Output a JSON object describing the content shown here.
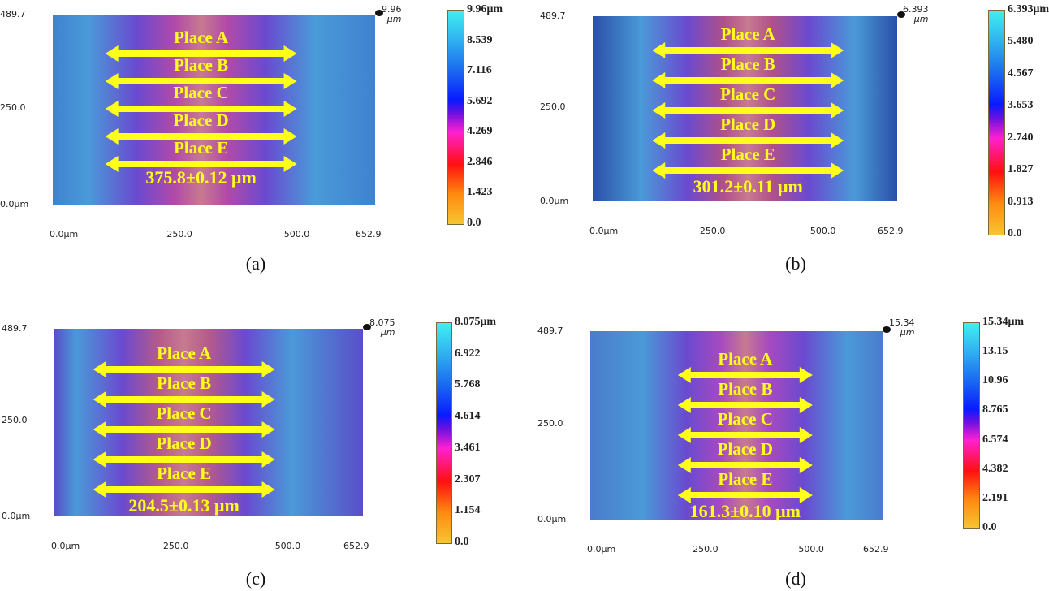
{
  "chart_data": [
    {
      "type": "heatmap",
      "panel_label": "(a)",
      "x_ticks": [
        "0.0μm",
        "250.0",
        "500.0",
        "652.9"
      ],
      "x_tick_values": [
        0,
        250,
        500,
        652.9
      ],
      "y_ticks": [
        "489.7",
        "250.0",
        "0.0μm"
      ],
      "y_tick_values": [
        489.7,
        250,
        0
      ],
      "xlim": [
        0,
        652.9
      ],
      "ylim": [
        0,
        489.7
      ],
      "z_max_label": "9.96",
      "z_unit": "μm",
      "colorbar_ticks": [
        "9.96μm",
        "8.539",
        "7.116",
        "5.692",
        "4.269",
        "2.846",
        "1.423",
        "0.0"
      ],
      "places": [
        "Place A",
        "Place B",
        "Place C",
        "Place D",
        "Place E"
      ],
      "measurement": "375.8±0.12 μm",
      "colors": {
        "outer": "#3f82d0",
        "center": "#b24aa8"
      }
    },
    {
      "type": "heatmap",
      "panel_label": "(b)",
      "x_ticks": [
        "0.0μm",
        "250.0",
        "500.0",
        "652.9"
      ],
      "x_tick_values": [
        0,
        250,
        500,
        652.9
      ],
      "y_ticks": [
        "489.7",
        "250.0",
        "0.0μm"
      ],
      "y_tick_values": [
        489.7,
        250,
        0
      ],
      "xlim": [
        0,
        652.9
      ],
      "ylim": [
        0,
        489.7
      ],
      "z_max_label": "6.393",
      "z_unit": "μm",
      "colorbar_ticks": [
        "6.393μm",
        "5.480",
        "4.567",
        "3.653",
        "2.740",
        "1.827",
        "0.913",
        "0.0"
      ],
      "places": [
        "Place A",
        "Place B",
        "Place C",
        "Place D",
        "Place E"
      ],
      "measurement": "301.2±0.11 μm",
      "colors": {
        "outer": "#2b4fa8",
        "center": "#b0508a"
      }
    },
    {
      "type": "heatmap",
      "panel_label": "(c)",
      "x_ticks": [
        "0.0μm",
        "250.0",
        "500.0",
        "652.9"
      ],
      "x_tick_values": [
        0,
        250,
        500,
        652.9
      ],
      "y_ticks": [
        "489.7",
        "250.0",
        "0.0μm"
      ],
      "y_tick_values": [
        489.7,
        250,
        0
      ],
      "xlim": [
        0,
        652.9
      ],
      "ylim": [
        0,
        489.7
      ],
      "z_max_label": "8.075",
      "z_unit": "μm",
      "colorbar_ticks": [
        "8.075μm",
        "6.922",
        "5.768",
        "4.614",
        "3.461",
        "2.307",
        "1.154",
        "0.0"
      ],
      "places": [
        "Place A",
        "Place B",
        "Place C",
        "Place D",
        "Place E"
      ],
      "measurement": "204.5±0.13 μm",
      "colors": {
        "outer": "#5a4ec8",
        "center": "#b65a8a"
      }
    },
    {
      "type": "heatmap",
      "panel_label": "(d)",
      "x_ticks": [
        "0.0μm",
        "250.0",
        "500.0",
        "652.9"
      ],
      "x_tick_values": [
        0,
        250,
        500,
        652.9
      ],
      "y_ticks": [
        "489.7",
        "250.0",
        "0.0μm"
      ],
      "y_tick_values": [
        489.7,
        250,
        0
      ],
      "xlim": [
        0,
        652.9
      ],
      "ylim": [
        0,
        489.7
      ],
      "z_max_label": "15.34",
      "z_unit": "μm",
      "colorbar_ticks": [
        "15.34μm",
        "13.15",
        "10.96",
        "8.765",
        "6.574",
        "4.382",
        "2.191",
        "0.0"
      ],
      "places": [
        "Place A",
        "Place B",
        "Place C",
        "Place D",
        "Place E"
      ],
      "measurement": "161.3±0.10 μm",
      "colors": {
        "outer": "#4a7ccc",
        "center": "#a84ac0"
      }
    }
  ]
}
